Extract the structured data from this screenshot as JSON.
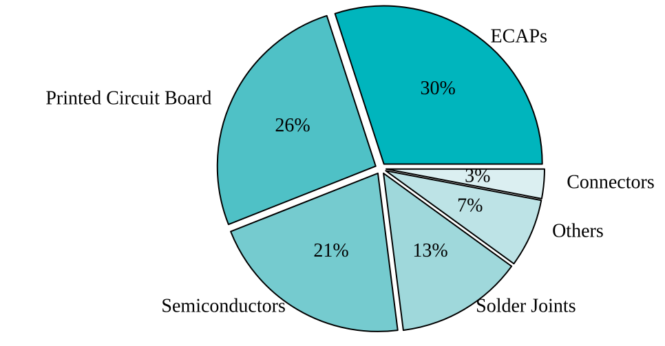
{
  "chart_data": {
    "type": "pie",
    "categories": [
      "ECAPs",
      "Printed Circuit Board",
      "Semiconductors",
      "Solder Joints",
      "Others",
      "Connectors"
    ],
    "values": [
      30,
      26,
      21,
      13,
      7,
      3
    ],
    "value_labels": [
      "30%",
      "26%",
      "21%",
      "13%",
      "7%",
      "3%"
    ],
    "colors": [
      "#00b5bd",
      "#4fc1c6",
      "#75cbcf",
      "#9fd8db",
      "#bde3e6",
      "#dbeff1"
    ]
  }
}
